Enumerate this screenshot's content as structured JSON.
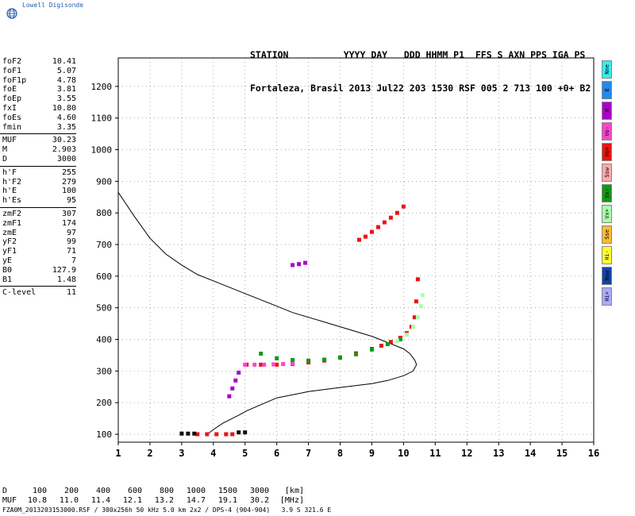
{
  "brand": {
    "name": "Lowell Digisonde",
    "logo_icon": "globe-icon"
  },
  "header": {
    "line1": "STATION          YYYY DAY   DDD HHMM P1  FFS S AXN PPS IGA PS",
    "line2": "Fortaleza, Brasil 2013 Jul22 203 1530 RSF 005 2 713 100 +0+ B2"
  },
  "params": [
    {
      "group": [
        {
          "label": "foF2",
          "value": "10.41"
        },
        {
          "label": "foF1",
          "value": "5.07"
        },
        {
          "label": "foF1p",
          "value": "4.78"
        },
        {
          "label": "foE",
          "value": "3.81"
        },
        {
          "label": "foEp",
          "value": "3.55"
        },
        {
          "label": "fxI",
          "value": "10.80"
        },
        {
          "label": "foEs",
          "value": "4.60"
        },
        {
          "label": "fmin",
          "value": "3.35"
        }
      ]
    },
    {
      "group": [
        {
          "label": "MUF",
          "value": "30.23"
        },
        {
          "label": "M",
          "value": "2.903"
        },
        {
          "label": "D",
          "value": "3000"
        }
      ]
    },
    {
      "group": [
        {
          "label": "h'F",
          "value": "255"
        },
        {
          "label": "h'F2",
          "value": "279"
        },
        {
          "label": "h'E",
          "value": "100"
        },
        {
          "label": "h'Es",
          "value": "95"
        }
      ]
    },
    {
      "group": [
        {
          "label": "zmF2",
          "value": "307"
        },
        {
          "label": "zmF1",
          "value": "174"
        },
        {
          "label": "zmE",
          "value": "97"
        },
        {
          "label": "yF2",
          "value": "99"
        },
        {
          "label": "yF1",
          "value": "71"
        },
        {
          "label": "yE",
          "value": "7"
        },
        {
          "label": "B0",
          "value": "127.9"
        },
        {
          "label": "B1",
          "value": "1.48"
        }
      ]
    },
    {
      "group": [
        {
          "label": "C-level",
          "value": "11"
        }
      ]
    }
  ],
  "legend": [
    {
      "label": "Nne",
      "color": "#33eeee"
    },
    {
      "label": "E",
      "color": "#2288ee"
    },
    {
      "label": "W",
      "color": "#aa00cc"
    },
    {
      "label": "Vo-",
      "color": "#ff44cc"
    },
    {
      "label": "Vo+",
      "color": "#ee1111"
    },
    {
      "label": "Ssw",
      "color": "#ffaaaa"
    },
    {
      "label": "Vx-",
      "color": "#119911"
    },
    {
      "label": "Vx+",
      "color": "#aaffaa"
    },
    {
      "label": "Sse",
      "color": "#ffbb33"
    },
    {
      "label": "Hi-",
      "color": "#ffff33"
    },
    {
      "label": "Nnw",
      "color": "#1144aa"
    },
    {
      "label": "Hi+",
      "color": "#aaaaff"
    }
  ],
  "chart_data": {
    "type": "scatter",
    "xlim": [
      1,
      16
    ],
    "ylim": [
      75,
      1290
    ],
    "xticks": [
      "1",
      "2",
      "3",
      "4",
      "5",
      "6",
      "7",
      "8",
      "9",
      "10",
      "11",
      "12",
      "13",
      "14",
      "15",
      "16"
    ],
    "yticks": [
      "100",
      "200",
      "300",
      "400",
      "500",
      "600",
      "700",
      "800",
      "900",
      "1000",
      "1100",
      "1200"
    ],
    "grid": "dotted",
    "profile_curve": {
      "name": "",
      "x": [
        1.0,
        1.5,
        2.0,
        2.5,
        3.0,
        3.5,
        4.0,
        4.5,
        5.0,
        5.5,
        6.0,
        6.5,
        7.0,
        7.5,
        8.0,
        8.5,
        9.0,
        9.5,
        10.0,
        10.2,
        10.35,
        10.41,
        10.3,
        10.0,
        9.5,
        9.0,
        8.0,
        7.0,
        6.0,
        5.07,
        4.8,
        4.3,
        4.0,
        3.81
      ],
      "y": [
        865,
        790,
        720,
        670,
        635,
        605,
        585,
        565,
        545,
        525,
        505,
        485,
        470,
        455,
        440,
        425,
        410,
        390,
        370,
        355,
        335,
        320,
        300,
        285,
        270,
        260,
        248,
        235,
        215,
        175,
        160,
        135,
        115,
        100
      ]
    },
    "series": [
      {
        "color": "#ee1111",
        "x": [
          5.05,
          5.5,
          6.0,
          6.5,
          7.0,
          7.5,
          8.0,
          8.5,
          9.0,
          9.3,
          9.6,
          9.9,
          10.1,
          10.25,
          10.35,
          10.4,
          10.45
        ],
        "y": [
          320,
          320,
          320,
          322,
          327,
          333,
          343,
          356,
          370,
          380,
          392,
          405,
          420,
          440,
          470,
          520,
          590
        ]
      },
      {
        "color": "#ff44cc",
        "x": [
          5.0,
          5.3,
          5.6,
          5.9,
          6.2,
          6.5
        ],
        "y": [
          320,
          320,
          320,
          321,
          322,
          324
        ]
      },
      {
        "color": "#119911",
        "x": [
          5.5,
          6.0,
          6.5,
          7.0,
          7.5,
          8.0,
          8.5,
          9.0,
          9.5,
          9.9
        ],
        "y": [
          355,
          340,
          335,
          333,
          336,
          342,
          353,
          368,
          385,
          400
        ]
      },
      {
        "color": "#aaffaa",
        "x": [
          9.8,
          10.1,
          10.3,
          10.45,
          10.55,
          10.6
        ],
        "y": [
          395,
          415,
          440,
          470,
          505,
          540
        ]
      },
      {
        "color": "#ee1111",
        "x": [
          8.6,
          8.8,
          9.0,
          9.2,
          9.4,
          9.6,
          9.8,
          10.0
        ],
        "y": [
          715,
          725,
          740,
          755,
          770,
          785,
          800,
          820
        ]
      },
      {
        "color": "#aa00cc",
        "x": [
          6.5,
          6.7,
          6.9
        ],
        "y": [
          635,
          638,
          642
        ]
      },
      {
        "color": "#ee1111",
        "x": [
          3.5,
          3.8,
          4.1,
          4.4,
          4.6
        ],
        "y": [
          100,
          100,
          100,
          100,
          100
        ]
      },
      {
        "color": "#111111",
        "x": [
          3.0,
          3.2,
          3.4,
          4.8,
          5.0
        ],
        "y": [
          102,
          102,
          102,
          106,
          106
        ]
      },
      {
        "color": "#aa00cc",
        "x": [
          4.5,
          4.6,
          4.7,
          4.8
        ],
        "y": [
          220,
          245,
          270,
          295
        ]
      }
    ]
  },
  "muf_table": {
    "rows": [
      [
        "D",
        "100",
        "200",
        "400",
        "600",
        "800",
        "1000",
        "1500",
        "3000",
        "[km]"
      ],
      [
        "MUF",
        "10.8",
        "11.0",
        "11.4",
        "12.1",
        "13.2",
        "14.7",
        "19.1",
        "30.2",
        "[MHz]"
      ]
    ]
  },
  "footer": "FZA0M_2013203153000.RSF / 300x256h 50 kHz 5.0 km 2x2 / DPS-4 (904-904)   3.9 S 321.6 E"
}
